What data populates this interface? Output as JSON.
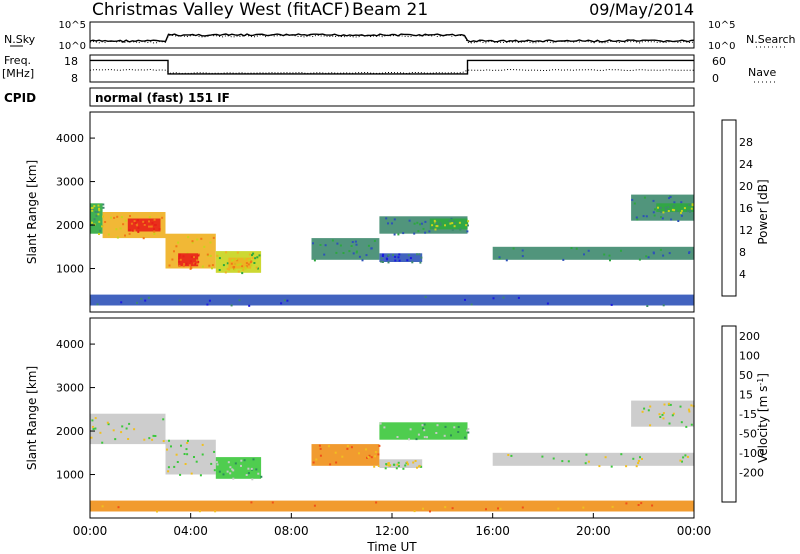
{
  "header": {
    "station": "Christmas Valley West (fitACF)",
    "beam": "Beam 21",
    "date": "09/May/2014"
  },
  "chart_data": [
    {
      "type": "line",
      "panel": "noise",
      "left_label": "N.Sky",
      "right_label": "N.Search",
      "left_ticks": [
        "10^5",
        "10^0"
      ],
      "right_ticks": [
        "10^5",
        "10^0"
      ],
      "y_scale": "log",
      "series": [
        {
          "name": "N.Sky",
          "style": "solid"
        },
        {
          "name": "N.Search",
          "style": "dotted"
        }
      ]
    },
    {
      "type": "line",
      "panel": "frequency",
      "left_label_1": "Freq.",
      "left_label_2": "[MHz]",
      "right_label": "Nave",
      "left_ticks": [
        "18",
        "8"
      ],
      "right_ticks": [
        "60",
        "0"
      ],
      "series": [
        {
          "name": "Freq.",
          "style": "solid",
          "points": [
            [
              0,
              16
            ],
            [
              3.1,
              16
            ],
            [
              3.1,
              11
            ],
            [
              15.0,
              11
            ],
            [
              15.0,
              16
            ],
            [
              24,
              16
            ]
          ]
        },
        {
          "name": "Nave",
          "style": "dotted"
        }
      ]
    },
    {
      "type": "table",
      "panel": "cpid",
      "label": "CPID",
      "value": "normal (fast) 151 IF"
    },
    {
      "type": "heatmap",
      "panel": "power",
      "ylabel": "Slant Range [km]",
      "yticks": [
        "1000",
        "2000",
        "3000",
        "4000"
      ],
      "ylim": [
        0,
        4600
      ],
      "colorbar_label": "Power [dB]",
      "colorbar_ticks": [
        "4",
        "8",
        "12",
        "16",
        "20",
        "24",
        "28"
      ],
      "colors": [
        "#1a1ae0",
        "#2d52b8",
        "#3e8a6e",
        "#2da83f",
        "#c8d41c",
        "#f0b020",
        "#f07818",
        "#e82018"
      ],
      "regions": [
        {
          "t0": 0.0,
          "t1": 0.5,
          "r0": 1800,
          "r1": 2500,
          "level": 3
        },
        {
          "t0": 0.5,
          "t1": 3.0,
          "r0": 1700,
          "r1": 2300,
          "level": 5
        },
        {
          "t0": 1.5,
          "t1": 2.8,
          "r0": 1850,
          "r1": 2150,
          "level": 7
        },
        {
          "t0": 3.0,
          "t1": 5.0,
          "r0": 1000,
          "r1": 1800,
          "level": 5
        },
        {
          "t0": 3.5,
          "t1": 4.3,
          "r0": 1050,
          "r1": 1350,
          "level": 7
        },
        {
          "t0": 5.0,
          "t1": 6.8,
          "r0": 900,
          "r1": 1400,
          "level": 4
        },
        {
          "t0": 5.5,
          "t1": 6.4,
          "r0": 1000,
          "r1": 1250,
          "level": 5
        },
        {
          "t0": 8.8,
          "t1": 11.5,
          "r0": 1200,
          "r1": 1700,
          "level": 2
        },
        {
          "t0": 11.5,
          "t1": 13.2,
          "r0": 1150,
          "r1": 1350,
          "level": 1
        },
        {
          "t0": 11.5,
          "t1": 15.0,
          "r0": 1800,
          "r1": 2200,
          "level": 2
        },
        {
          "t0": 13.5,
          "t1": 15.0,
          "r0": 1900,
          "r1": 2150,
          "level": 3
        },
        {
          "t0": 16.0,
          "t1": 24.0,
          "r0": 1200,
          "r1": 1500,
          "level": 2
        },
        {
          "t0": 21.5,
          "t1": 24.0,
          "r0": 2100,
          "r1": 2700,
          "level": 2
        },
        {
          "t0": 22.5,
          "t1": 24.0,
          "r0": 2300,
          "r1": 2500,
          "level": 3
        },
        {
          "t0": 0.0,
          "t1": 24.0,
          "r0": 150,
          "r1": 400,
          "level": 1
        }
      ]
    },
    {
      "type": "heatmap",
      "panel": "velocity",
      "ylabel": "Slant Range [km]",
      "yticks": [
        "1000",
        "2000",
        "3000",
        "4000"
      ],
      "ylim": [
        0,
        4600
      ],
      "colorbar_label": "Velocity [m s",
      "colorbar_label_sup": "-1",
      "colorbar_label_end": "]",
      "colorbar_ticks": [
        "200",
        "100",
        "50",
        "15",
        "-15",
        "-50",
        "-100",
        "-200"
      ],
      "colors": [
        "#1a30d0",
        "#2e68a0",
        "#2e8a5a",
        "#3cc83c",
        "#c8c8c8",
        "#f0c020",
        "#f09018",
        "#f05018",
        "#e01818"
      ],
      "regions": [
        {
          "t0": 0.0,
          "t1": 3.0,
          "r0": 1700,
          "r1": 2400,
          "level": 4
        },
        {
          "t0": 3.0,
          "t1": 5.0,
          "r0": 1000,
          "r1": 1800,
          "level": 4
        },
        {
          "t0": 5.0,
          "t1": 6.8,
          "r0": 900,
          "r1": 1400,
          "level": 3
        },
        {
          "t0": 8.8,
          "t1": 11.5,
          "r0": 1200,
          "r1": 1700,
          "level": 6
        },
        {
          "t0": 11.5,
          "t1": 15.0,
          "r0": 1800,
          "r1": 2200,
          "level": 3
        },
        {
          "t0": 11.5,
          "t1": 13.2,
          "r0": 1150,
          "r1": 1350,
          "level": 4
        },
        {
          "t0": 16.0,
          "t1": 24.0,
          "r0": 1200,
          "r1": 1500,
          "level": 4
        },
        {
          "t0": 21.5,
          "t1": 24.0,
          "r0": 2100,
          "r1": 2700,
          "level": 4
        },
        {
          "t0": 0.0,
          "t1": 24.0,
          "r0": 150,
          "r1": 400,
          "level": 6
        }
      ]
    }
  ],
  "x_axis": {
    "label": "Time UT",
    "ticks": [
      "00:00",
      "04:00",
      "08:00",
      "12:00",
      "16:00",
      "20:00",
      "00:00"
    ],
    "range_hours": [
      0,
      24
    ]
  }
}
